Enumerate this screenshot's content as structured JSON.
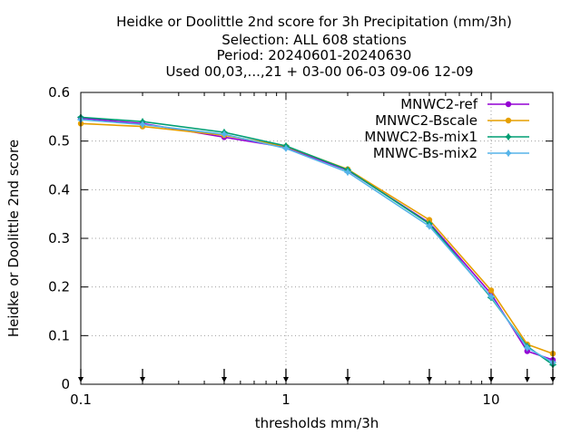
{
  "chart_data": {
    "type": "line",
    "title_lines": [
      "Heidke or Doolittle 2nd score  for 3h Precipitation (mm/3h)",
      "Selection: ALL    608 stations",
      "Period: 20240601-20240630",
      "Used 00,03,...,21 + 03-00 06-03 09-06 12-09"
    ],
    "xlabel": "thresholds mm/3h",
    "ylabel": "Heidke or Doolittle 2nd score",
    "x_scale": "log",
    "xlim": [
      0.1,
      20
    ],
    "ylim": [
      0,
      0.6
    ],
    "x_ticks": [
      0.1,
      1,
      10
    ],
    "x_tick_labels": [
      "0.1",
      "1",
      "10"
    ],
    "y_ticks": [
      0,
      0.1,
      0.2,
      0.3,
      0.4,
      0.5,
      0.6
    ],
    "y_tick_labels": [
      "0",
      "0.1",
      "0.2",
      "0.3",
      "0.4",
      "0.5",
      "0.6"
    ],
    "grid": true,
    "legend_position": "top-right",
    "threshold_markers": [
      0.1,
      0.2,
      0.5,
      1,
      2,
      5,
      10,
      15,
      20
    ],
    "x": [
      0.1,
      0.2,
      0.5,
      1,
      2,
      5,
      10,
      15,
      20
    ],
    "series": [
      {
        "name": "MNWC2-ref",
        "color": "#9400d3",
        "marker": "circle",
        "values": [
          0.547,
          0.536,
          0.508,
          0.487,
          0.44,
          0.332,
          0.186,
          0.068,
          0.05
        ]
      },
      {
        "name": "MNWC2-Bscale",
        "color": "#e69f00",
        "marker": "circle",
        "values": [
          0.536,
          0.53,
          0.512,
          0.489,
          0.442,
          0.338,
          0.193,
          0.082,
          0.063
        ]
      },
      {
        "name": "MNWC2-Bs-mix1",
        "color": "#009e73",
        "marker": "star",
        "values": [
          0.549,
          0.54,
          0.518,
          0.49,
          0.441,
          0.33,
          0.178,
          0.078,
          0.04
        ]
      },
      {
        "name": "MNWC-Bs-mix2",
        "color": "#56b4e9",
        "marker": "star",
        "values": [
          0.544,
          0.534,
          0.514,
          0.485,
          0.436,
          0.325,
          0.18,
          0.075,
          0.045
        ]
      }
    ]
  }
}
